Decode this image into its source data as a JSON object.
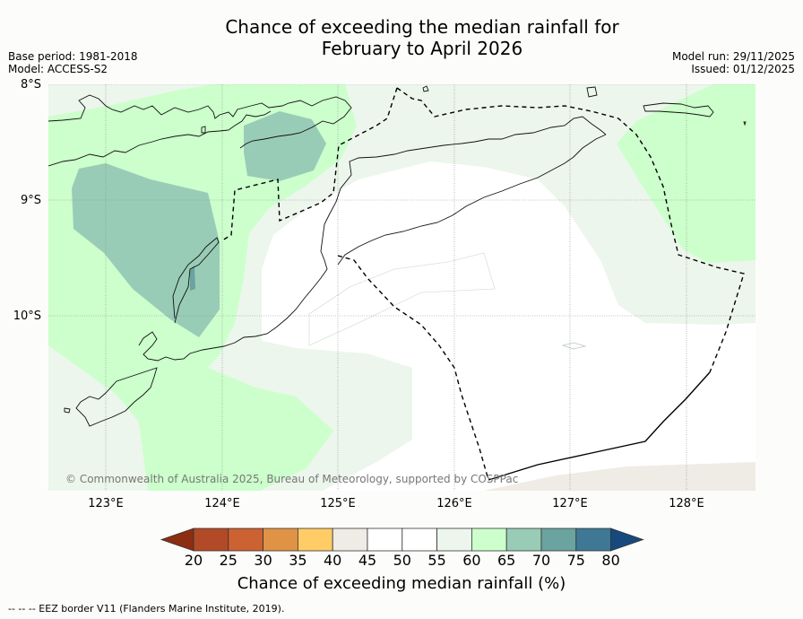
{
  "title": {
    "line1": "Chance of exceeding the median rainfall for",
    "line2": "February to April 2026"
  },
  "meta": {
    "base_period": "Base period: 1981-2018",
    "model": "Model: ACCESS-S2",
    "model_run": "Model run: 29/11/2025",
    "issued": "Issued: 01/12/2025"
  },
  "map": {
    "lat_labels": [
      "8°S",
      "9°S",
      "10°S"
    ],
    "lon_labels": [
      "123°E",
      "124°E",
      "125°E",
      "126°E",
      "127°E",
      "128°E"
    ],
    "copyright": "© Commonwealth of Australia 2025, Bureau of Meteorology, supported by COSPPac"
  },
  "colorbar": {
    "ticks": [
      "20",
      "25",
      "30",
      "35",
      "40",
      "45",
      "50",
      "55",
      "60",
      "65",
      "70",
      "75",
      "80"
    ],
    "label": "Chance of exceeding median rainfall (%)",
    "colors": [
      "#8b2e12",
      "#b24a27",
      "#cc6232",
      "#e09345",
      "#ffcc66",
      "#efebe5",
      "#ffffff",
      "#ffffff",
      "#ecf6ec",
      "#ccffcc",
      "#99ccb6",
      "#6aa3a0",
      "#3e7895",
      "#17497f"
    ]
  },
  "footnote": "--  --  -- EEZ border V11 (Flanders Marine Institute, 2019)."
}
